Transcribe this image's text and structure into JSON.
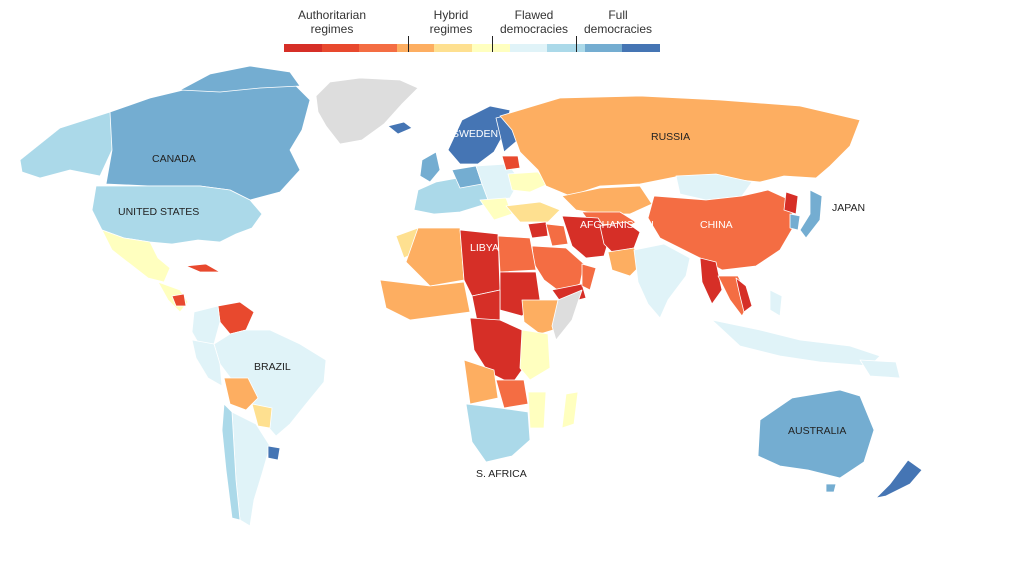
{
  "legend": {
    "categories": [
      {
        "label": "Authoritarian\nregimes",
        "colors": [
          "#d62f27",
          "#e8492e",
          "#f46d43"
        ]
      },
      {
        "label": "Hybrid\nregimes",
        "colors": [
          "#fdae61",
          "#fee090",
          "#ffffbf"
        ]
      },
      {
        "label": "Flawed\ndemocracies",
        "colors": [
          "#e0f3f8",
          "#abd9e9",
          "#74add1"
        ]
      },
      {
        "label": "Full\ndemocracies",
        "colors": [
          "#4575b4"
        ]
      }
    ],
    "swatches": [
      "#d62f27",
      "#e8492e",
      "#f46d43",
      "#fdae61",
      "#fee090",
      "#ffffbf",
      "#e0f3f8",
      "#abd9e9",
      "#74add1",
      "#4575b4"
    ]
  },
  "no_data_color": "#dddddd",
  "labels": {
    "canada": "CANADA",
    "united_states": "UNITED STATES",
    "brazil": "BRAZIL",
    "sweden": "SWEDEN",
    "russia": "RUSSIA",
    "libya": "LIBYA",
    "afghanistan": "AFGHANISTAN",
    "china": "CHINA",
    "japan": "JAPAN",
    "australia": "AUSTRALIA",
    "south_africa": "S. AFRICA"
  }
}
